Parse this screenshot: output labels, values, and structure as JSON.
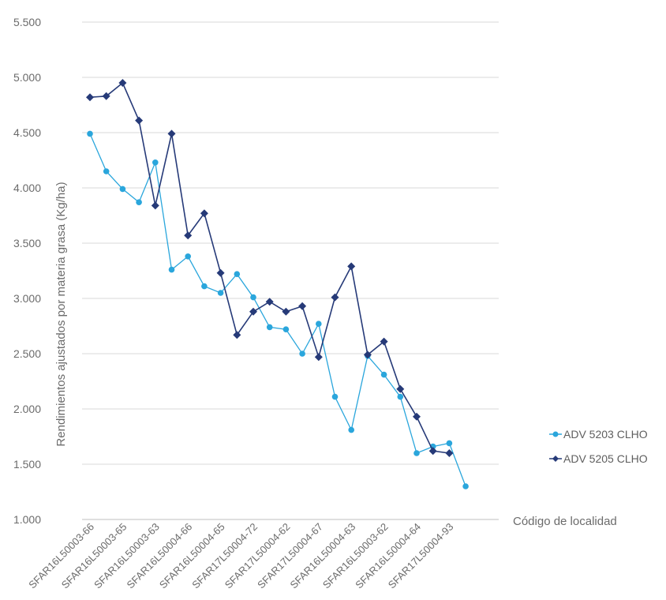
{
  "chart_data": {
    "type": "line",
    "xlabel": "Código de localidad",
    "ylabel": "Rendimientos ajustados por materia grasa (Kg/ha)",
    "ylim": [
      1000,
      5500
    ],
    "yticks": [
      1000,
      1500,
      2000,
      2500,
      3000,
      3500,
      4000,
      4500,
      5000,
      5500
    ],
    "ytick_labels": [
      "1.000",
      "1.500",
      "2.000",
      "2.500",
      "3.000",
      "3.500",
      "4.000",
      "4.500",
      "5.000",
      "5.500"
    ],
    "grid": "horizontal",
    "legend_position": "right",
    "categories": [
      "SFAR16L50003-66",
      "",
      "SFAR16L50003-65",
      "",
      "SFAR16L50003-63",
      "",
      "SFAR16L50004-66",
      "",
      "SFAR16L50004-65",
      "",
      "SFAR17L50004-72",
      "",
      "SFAR17L50004-62",
      "",
      "SFAR17L50004-67",
      "",
      "SFAR16L50004-63",
      "",
      "SFAR16L50003-62",
      "",
      "SFAR16L50004-64",
      "",
      "SFAR17L50004-93",
      "",
      ""
    ],
    "series": [
      {
        "name": "ADV 5203 CLHO",
        "color": "#2aa6dc",
        "marker": "circle",
        "values": [
          4490,
          4150,
          3990,
          3870,
          4230,
          3260,
          3380,
          3110,
          3050,
          3220,
          3010,
          2740,
          2720,
          2500,
          2770,
          2110,
          1810,
          2480,
          2310,
          2110,
          1600,
          1660,
          1690,
          1300,
          null
        ]
      },
      {
        "name": "ADV 5205 CLHO",
        "color": "#263a78",
        "marker": "diamond",
        "values": [
          4820,
          4830,
          4950,
          4610,
          3840,
          4490,
          3570,
          3770,
          3230,
          2670,
          2880,
          2970,
          2880,
          2930,
          2470,
          3010,
          3290,
          2490,
          2610,
          2180,
          1930,
          1620,
          1600,
          null,
          null
        ]
      }
    ]
  }
}
